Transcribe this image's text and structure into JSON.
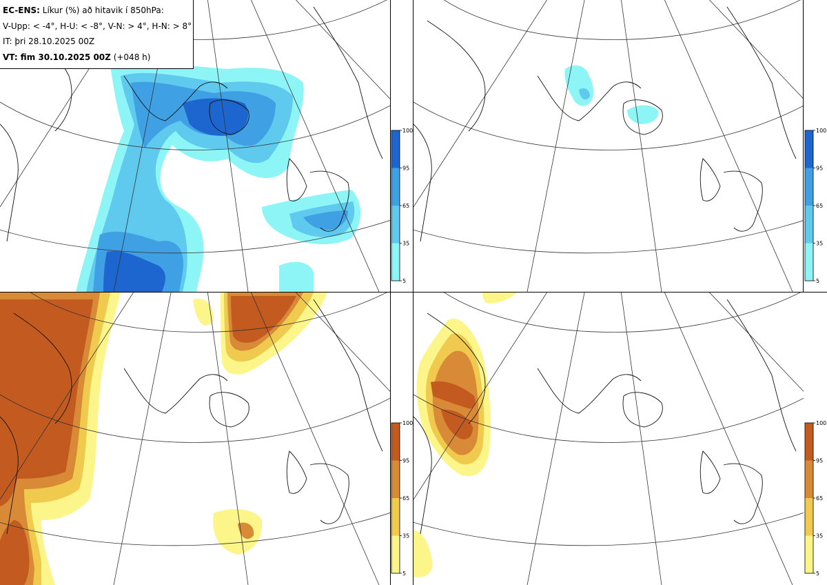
{
  "header": {
    "model": "EC-ENS:",
    "title": " Líkur (%) að hitavik í 850hPa:",
    "thresholds": "V-Upp: < -4°, H-U: < -8°, V-N: > 4°, H-N: > 8°",
    "init_time": "IT: þri 28.10.2025 00Z",
    "valid_label": "VT: fim 30.10.2025 00Z",
    "lead": " (+048 h)"
  },
  "colorbars": {
    "cold": {
      "colors": [
        "#8ef5f7",
        "#5fc9ee",
        "#3fa0e3",
        "#1d66cf"
      ],
      "ticks": [
        "100",
        "95",
        "65",
        "35",
        "5"
      ]
    },
    "warm": {
      "colors": [
        "#fbf58a",
        "#f0c94f",
        "#d98a36",
        "#c35a20"
      ],
      "ticks": [
        "100",
        "95",
        "65",
        "35",
        "5"
      ]
    }
  },
  "panels": [
    {
      "id": "v-upp",
      "scheme": "cold",
      "level": "strong"
    },
    {
      "id": "h-u",
      "scheme": "cold",
      "level": "weak"
    },
    {
      "id": "v-n",
      "scheme": "warm",
      "level": "strong"
    },
    {
      "id": "h-n",
      "scheme": "warm",
      "level": "medium"
    }
  ]
}
